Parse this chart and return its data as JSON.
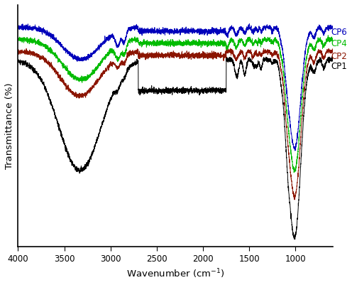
{
  "xlabel": "Wavenumber (cm⁻¹)",
  "ylabel": "Transmittance (%)",
  "xmin": 4000,
  "xmax": 600,
  "colors": {
    "CP1": "#000000",
    "CP2": "#8B1500",
    "CP4": "#00BB00",
    "CP6": "#0000BB"
  },
  "label_color_CP1": "#000000",
  "label_color_CP2": "#8B1500",
  "label_color_CP4": "#00BB00",
  "label_color_CP6": "#0000BB",
  "figsize": [
    4.96,
    4.01
  ],
  "dpi": 100
}
